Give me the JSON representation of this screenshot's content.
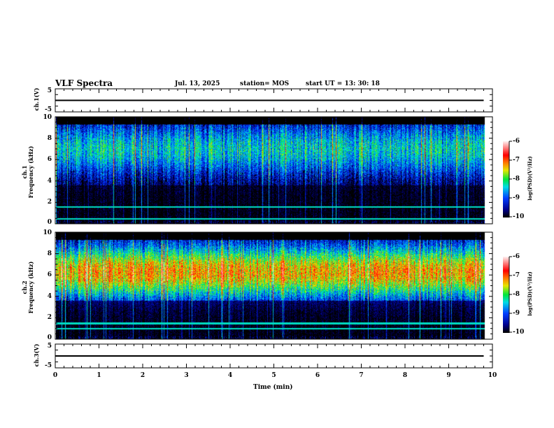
{
  "header": {
    "title": "VLF Spectra",
    "date": "Jul. 13, 2025",
    "station": "station= MOS",
    "start": "start UT =   13: 30: 18"
  },
  "chart_data": {
    "type": "heatmap",
    "xlabel": "Time (min)",
    "xlim": [
      0,
      10
    ],
    "xticks": [
      "0",
      "1",
      "2",
      "3",
      "4",
      "5",
      "6",
      "7",
      "8",
      "9",
      "10"
    ],
    "data_end_min": 9.8,
    "panels": [
      {
        "name": "ch1-waveform",
        "ylabel": "ch.1(V)",
        "ylim": [
          -5,
          5
        ],
        "yticks": [
          "5",
          "-5"
        ],
        "level": 0
      },
      {
        "name": "ch1-spectrogram",
        "ylabel": "ch.1\nFrequency (kHz)",
        "ylabel_top": "ch.1",
        "ylabel_bottom": "Frequency (kHz)",
        "ylim": [
          0,
          10
        ],
        "yticks": [
          "0",
          "2",
          "4",
          "6",
          "8",
          "10"
        ],
        "band_peak_khz": 7,
        "band_level": -8.4,
        "lines_khz": [
          0.5,
          1.6
        ]
      },
      {
        "name": "ch2-spectrogram",
        "ylabel_top": "ch.2",
        "ylabel_bottom": "Frequency (kHz)",
        "ylim": [
          0,
          10
        ],
        "yticks": [
          "0",
          "2",
          "4",
          "6",
          "8",
          "10"
        ],
        "band_peak_khz": 6.3,
        "band_level": -7.3,
        "lines_khz": [
          1.0,
          1.5
        ]
      },
      {
        "name": "ch3-waveform",
        "ylabel": "ch.3(V)",
        "ylim": [
          -5,
          5
        ],
        "yticks": [
          "5",
          "-5"
        ],
        "level": 0
      }
    ],
    "colorbar": {
      "label": "log(PSD)(V²/Hz)",
      "range": [
        -10,
        -6
      ],
      "ticks": [
        "-6",
        "-7",
        "-8",
        "-9",
        "-10"
      ]
    }
  }
}
